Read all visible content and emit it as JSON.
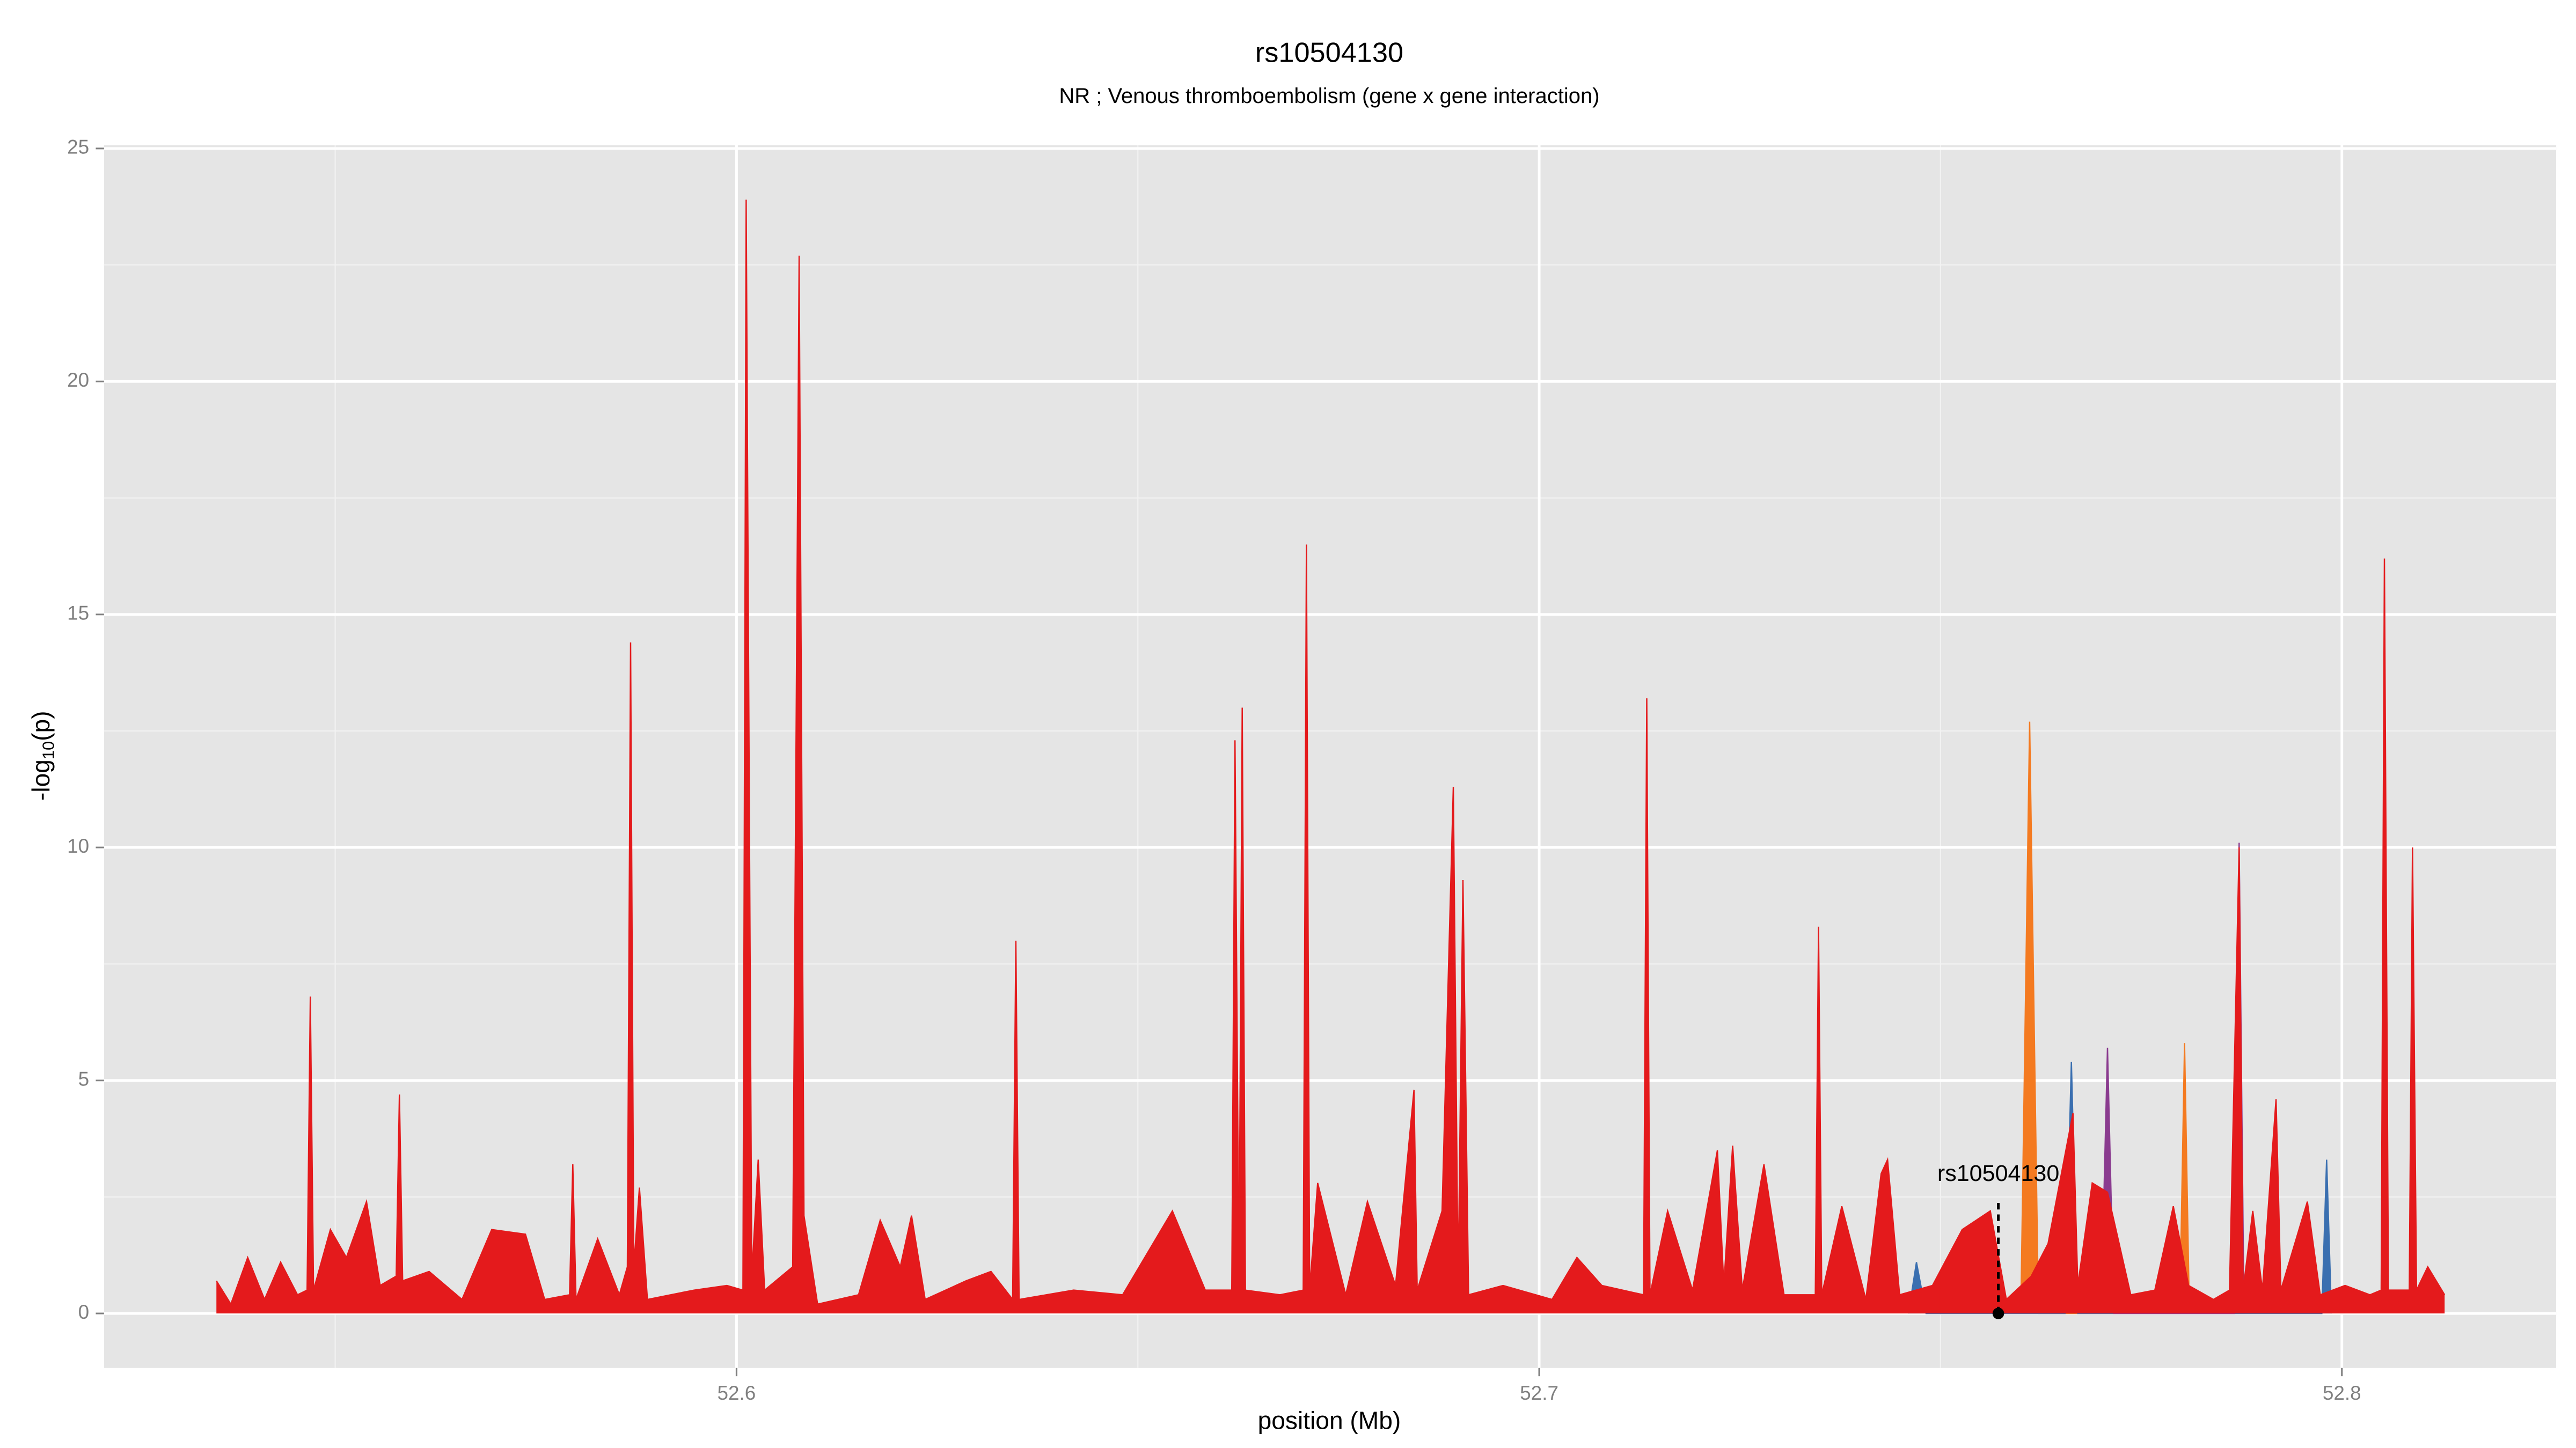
{
  "chart_data": {
    "type": "area",
    "title": "rs10504130",
    "subtitle": "NR ; Venous thromboembolism (gene x gene interaction)",
    "x_label": "position (Mb)",
    "y_label": [
      "-log",
      "10",
      "(p)"
    ],
    "xlim": [
      52.5212,
      52.8267
    ],
    "ylim": [
      -1.17,
      25.07
    ],
    "xticks": [
      52.6,
      52.7,
      52.8
    ],
    "yticks": [
      0,
      5,
      10,
      15,
      20,
      25
    ],
    "xminor": [
      52.55,
      52.65,
      52.75
    ],
    "yminor": [
      2.5,
      7.5,
      12.5,
      17.5,
      22.5
    ],
    "grid": true,
    "background": "#e5e5e5",
    "series": [
      {
        "color": "#f47a20",
        "x": [
          52.76,
          52.7611,
          52.7622,
          52.7798,
          52.7804,
          52.781
        ],
        "values": [
          0,
          12.7,
          0,
          0,
          5.8,
          0
        ]
      },
      {
        "color": "#3a6fb0",
        "x": [
          52.746,
          52.747,
          52.7482,
          52.7655,
          52.7663,
          52.7671,
          52.7975,
          52.7981,
          52.7987
        ],
        "values": [
          0,
          1.1,
          0,
          0,
          5.4,
          0,
          0,
          3.3,
          0
        ]
      },
      {
        "color": "#8a3b8f",
        "x": [
          52.77,
          52.7708,
          52.7716,
          52.7866,
          52.7872,
          52.7878
        ],
        "values": [
          0,
          5.7,
          0,
          0,
          10.1,
          0
        ]
      },
      {
        "color": "#e41a1c",
        "x": [
          52.5352,
          52.537,
          52.5391,
          52.5412,
          52.5432,
          52.5453,
          52.5465,
          52.5469,
          52.5473,
          52.5494,
          52.5514,
          52.5539,
          52.5556,
          52.5576,
          52.558,
          52.5584,
          52.5617,
          52.5658,
          52.5695,
          52.5737,
          52.5761,
          52.5792,
          52.5796,
          52.58,
          52.5827,
          52.5854,
          52.5864,
          52.5868,
          52.5872,
          52.5879,
          52.5889,
          52.5947,
          52.5988,
          52.6008,
          52.6012,
          52.6019,
          52.6027,
          52.6035,
          52.607,
          52.6078,
          52.6084,
          52.6101,
          52.6152,
          52.6179,
          52.6204,
          52.6218,
          52.6235,
          52.6286,
          52.6317,
          52.6344,
          52.6348,
          52.6352,
          52.642,
          52.6481,
          52.6543,
          52.6584,
          52.6617,
          52.6621,
          52.6626,
          52.663,
          52.6634,
          52.6677,
          52.6706,
          52.671,
          52.6714,
          52.6724,
          52.6759,
          52.6786,
          52.6821,
          52.6844,
          52.6848,
          52.6879,
          52.6893,
          52.6899,
          52.6905,
          52.6912,
          52.6955,
          52.7016,
          52.7047,
          52.7078,
          52.713,
          52.7134,
          52.7138,
          52.716,
          52.7191,
          52.7222,
          52.723,
          52.7241,
          52.7253,
          52.728,
          52.7305,
          52.7344,
          52.7348,
          52.7352,
          52.7377,
          52.7407,
          52.7426,
          52.7434,
          52.7449,
          52.749,
          52.7527,
          52.7562,
          52.7582,
          52.7613,
          52.7634,
          52.7665,
          52.7671,
          52.7689,
          52.7708,
          52.7737,
          52.7767,
          52.779,
          52.7809,
          52.784,
          52.786,
          52.7872,
          52.7877,
          52.7889,
          52.7901,
          52.7918,
          52.7924,
          52.7957,
          52.7973,
          52.8004,
          52.8035,
          52.8049,
          52.8053,
          52.8058,
          52.8084,
          52.8088,
          52.8093,
          52.8107,
          52.8128
        ],
        "values": [
          0.7,
          0.2,
          1.2,
          0.3,
          1.1,
          0.4,
          0.5,
          6.8,
          0.5,
          1.8,
          1.2,
          2.4,
          0.6,
          0.8,
          4.7,
          0.7,
          0.9,
          0.3,
          1.8,
          1.7,
          0.3,
          0.4,
          3.2,
          0.3,
          1.6,
          0.4,
          1.0,
          14.4,
          1.0,
          2.7,
          0.3,
          0.5,
          0.6,
          0.5,
          23.9,
          0.8,
          3.3,
          0.5,
          1.0,
          22.7,
          2.1,
          0.2,
          0.4,
          2.0,
          1.0,
          2.1,
          0.3,
          0.7,
          0.9,
          0.3,
          8.0,
          0.3,
          0.5,
          0.4,
          2.2,
          0.5,
          0.5,
          12.3,
          0.5,
          13.0,
          0.5,
          0.4,
          0.5,
          16.5,
          0.5,
          2.8,
          0.4,
          2.4,
          0.6,
          4.8,
          0.5,
          2.2,
          11.3,
          0.6,
          9.3,
          0.4,
          0.6,
          0.3,
          1.2,
          0.6,
          0.4,
          13.2,
          0.4,
          2.2,
          0.5,
          3.5,
          0.6,
          3.6,
          0.5,
          3.2,
          0.4,
          0.4,
          8.3,
          0.4,
          2.3,
          0.3,
          3.0,
          3.3,
          0.4,
          0.6,
          1.8,
          2.2,
          0.3,
          0.8,
          1.5,
          4.3,
          0.6,
          2.8,
          2.6,
          0.4,
          0.5,
          2.3,
          0.6,
          0.3,
          0.5,
          10.0,
          0.5,
          2.2,
          0.5,
          4.6,
          0.5,
          2.4,
          0.4,
          0.6,
          0.4,
          0.5,
          16.2,
          0.5,
          0.5,
          10.0,
          0.5,
          1.0,
          0.4
        ]
      }
    ],
    "annotation": {
      "label": "rs10504130",
      "x": 52.7572,
      "y": 0
    }
  }
}
